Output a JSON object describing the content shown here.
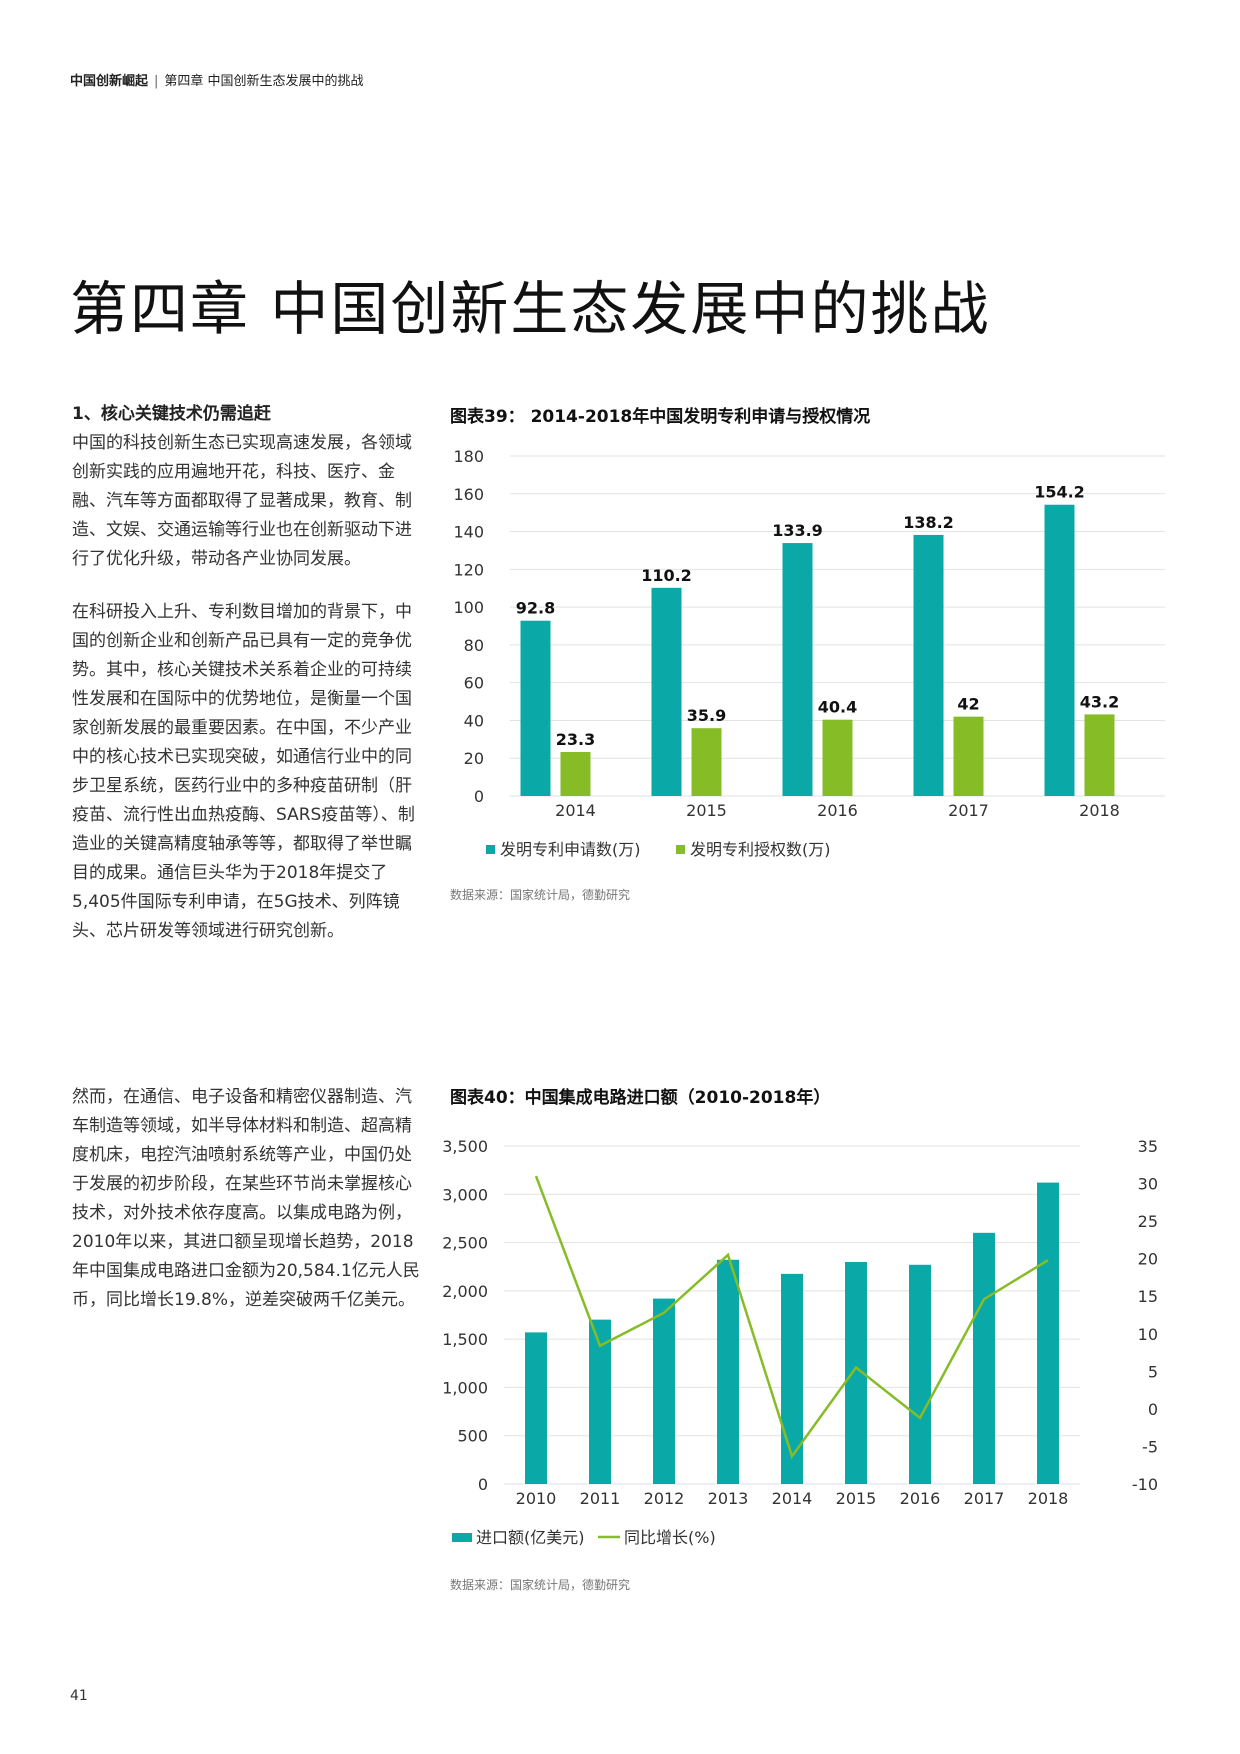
{
  "header": {
    "brand": "中国创新崛起",
    "separator": "|",
    "chapter": "第四章 中国创新生态发展中的挑战"
  },
  "title": "第四章 中国创新生态发展中的挑战",
  "section": {
    "heading": "1、核心关键技术仍需追赶",
    "paragraphs": [
      "中国的科技创新生态已实现高速发展，各领域创新实践的应用遍地开花，科技、医疗、金融、汽车等方面都取得了显著成果，教育、制造、文娱、交通运输等行业也在创新驱动下进行了优化升级，带动各产业协同发展。",
      "在科研投入上升、专利数目增加的背景下，中国的创新企业和创新产品已具有一定的竞争优势。其中，核心关键技术关系着企业的可持续性发展和在国际中的优势地位，是衡量一个国家创新发展的最重要因素。在中国，不少产业中的核心技术已实现突破，如通信行业中的同步卫星系统，医药行业中的多种疫苗研制（肝疫苗、流行性出血热疫酶、SARS疫苗等）、制造业的关键高精度轴承等等，都取得了举世瞩目的成果。通信巨头华为于2018年提交了5,405件国际专利申请，在5G技术、列阵镜头、芯片研发等领域进行研究创新。",
      "然而，在通信、电子设备和精密仪器制造、汽车制造等领域，如半导体材料和制造、超高精度机床，电控汽油喷射系统等产业，中国仍处于发展的初步阶段，在某些环节尚未掌握核心技术，对外技术依存度高。以集成电路为例，2010年以来，其进口额呈现增长趋势，2018年中国集成电路进口金额为20,584.1亿元人民币，同比增长19.8%，逆差突破两千亿美元。"
    ]
  },
  "charts": {
    "chart39": {
      "title": "图表39：  2014-2018年中国发明专利申请与授权情况",
      "source": "数据来源：国家统计局，德勤研究"
    },
    "chart40": {
      "title": "图表40：中国集成电路进口额（2010-2018年）",
      "source": "数据来源：国家统计局，德勤研究"
    }
  },
  "chart_data": [
    {
      "type": "bar",
      "categories": [
        "2014",
        "2015",
        "2016",
        "2017",
        "2018"
      ],
      "series": [
        {
          "name": "发明专利申请数(万)",
          "values": [
            92.8,
            110.2,
            133.9,
            138.2,
            154.2
          ],
          "color": "#0aa8a7"
        },
        {
          "name": "发明专利授权数(万)",
          "values": [
            23.3,
            35.9,
            40.4,
            42,
            43.2
          ],
          "color": "#86bc25"
        }
      ],
      "yticks": [
        "0",
        "20",
        "40",
        "60",
        "80",
        "100",
        "120",
        "140",
        "160",
        "180"
      ],
      "ylim": [
        0,
        180
      ],
      "grid": true,
      "legend": "bottom-left"
    },
    {
      "type": "bar+line",
      "categories": [
        "2010",
        "2011",
        "2012",
        "2013",
        "2014",
        "2015",
        "2016",
        "2017",
        "2018"
      ],
      "bar_series": {
        "name": "进口额(亿美元)",
        "values": [
          1570,
          1702,
          1920,
          2322,
          2176,
          2299,
          2270,
          2601,
          3121
        ],
        "color": "#0aa8a7"
      },
      "line_series": {
        "name": "同比增长(%)",
        "values": [
          31.0,
          8.4,
          12.8,
          20.5,
          -6.3,
          5.5,
          -1.2,
          14.6,
          19.8
        ],
        "color": "#86bc25"
      },
      "left_yticks": [
        "0",
        "500",
        "1,000",
        "1,500",
        "2,000",
        "2,500",
        "3,000",
        "3,500"
      ],
      "right_yticks": [
        "-10",
        "-5",
        "0",
        "5",
        "10",
        "15",
        "20",
        "25",
        "30",
        "35"
      ],
      "left_ylim": [
        0,
        3500
      ],
      "right_ylim": [
        -10,
        35
      ],
      "grid": true,
      "legend": "bottom-left"
    }
  ],
  "page_number": "41"
}
